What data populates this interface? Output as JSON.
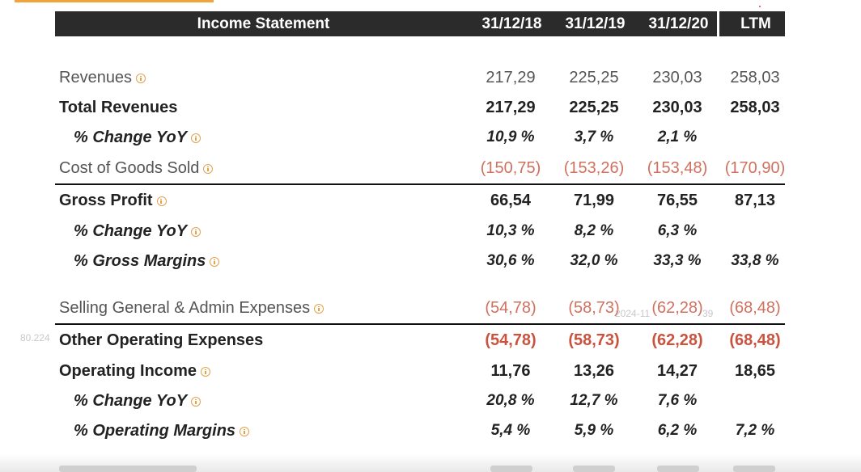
{
  "table": {
    "title": "Income Statement",
    "columns": [
      "31/12/18",
      "31/12/19",
      "31/12/20",
      "LTM"
    ],
    "rows": [
      {
        "label": "Revenues",
        "values": [
          "217,29",
          "225,25",
          "230,03",
          "258,03"
        ]
      },
      {
        "label": "Total Revenues",
        "values": [
          "217,29",
          "225,25",
          "230,03",
          "258,03"
        ]
      },
      {
        "label": "% Change YoY",
        "values": [
          "10,9 %",
          "3,7 %",
          "2,1 %",
          ""
        ]
      },
      {
        "label": "Cost of Goods Sold",
        "values": [
          "(150,75)",
          "(153,26)",
          "(153,48)",
          "(170,90)"
        ]
      },
      {
        "label": "Gross Profit",
        "values": [
          "66,54",
          "71,99",
          "76,55",
          "87,13"
        ]
      },
      {
        "label": "% Change YoY",
        "values": [
          "10,3 %",
          "8,2 %",
          "6,3 %",
          ""
        ]
      },
      {
        "label": "% Gross Margins",
        "values": [
          "30,6 %",
          "32,0 %",
          "33,3 %",
          "33,8 %"
        ]
      },
      {
        "label": "Selling General & Admin Expenses",
        "values": [
          "(54,78)",
          "(58,73)",
          "(62,28)",
          "(68,48)"
        ]
      },
      {
        "label": "Other Operating Expenses",
        "values": [
          "(54,78)",
          "(58,73)",
          "(62,28)",
          "(68,48)"
        ]
      },
      {
        "label": "Operating Income",
        "values": [
          "11,76",
          "13,26",
          "14,27",
          "18,65"
        ]
      },
      {
        "label": "% Change YoY",
        "values": [
          "20,8 %",
          "12,7 %",
          "7,6 %",
          ""
        ]
      },
      {
        "label": "% Operating Margins",
        "values": [
          "5,4 %",
          "5,9 %",
          "6,2 %",
          "7,2 %"
        ]
      }
    ]
  },
  "watermark": {
    "left": "80.224",
    "middle": "2024-11",
    "right": "39"
  },
  "colors": {
    "header_bg": "#2b2b2b",
    "negative": "#c9533f",
    "info_icon": "#e3a24a",
    "accent": "#f0a43a"
  }
}
